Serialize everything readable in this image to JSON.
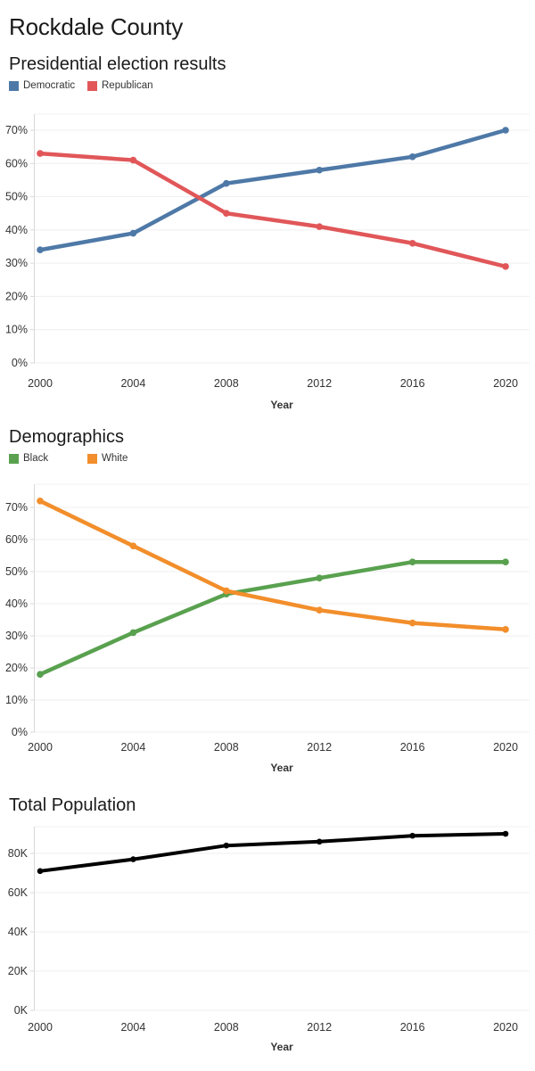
{
  "header": {
    "title": "Rockdale County"
  },
  "chart_data": [
    {
      "type": "line",
      "title": "Presidential election results",
      "xlabel": "Year",
      "x": [
        "2000",
        "2004",
        "2008",
        "2012",
        "2016",
        "2020"
      ],
      "series": [
        {
          "name": "Democratic",
          "color": "#4e79a7",
          "values": [
            34,
            39,
            54,
            58,
            62,
            70
          ]
        },
        {
          "name": "Republican",
          "color": "#e15759",
          "values": [
            63,
            61,
            45,
            41,
            36,
            29
          ]
        }
      ],
      "ylim": [
        0,
        70
      ],
      "ytick_step": 10,
      "ytick_suffix": "%",
      "grid": true,
      "legend_position": "top"
    },
    {
      "type": "line",
      "title": "Demographics",
      "xlabel": "Year",
      "x": [
        "2000",
        "2004",
        "2008",
        "2012",
        "2016",
        "2020"
      ],
      "series": [
        {
          "name": "Black",
          "color": "#59a14f",
          "values": [
            18,
            31,
            43,
            48,
            53,
            53
          ]
        },
        {
          "name": "White",
          "color": "#f28e2b",
          "values": [
            72,
            58,
            44,
            38,
            34,
            32
          ]
        }
      ],
      "ylim": [
        0,
        70
      ],
      "ytick_step": 10,
      "ytick_suffix": "%",
      "grid": true,
      "legend_position": "top"
    },
    {
      "type": "line",
      "title": "Total Population",
      "xlabel": "Year",
      "x": [
        "2000",
        "2004",
        "2008",
        "2012",
        "2016",
        "2020"
      ],
      "value_unit": "K",
      "series": [
        {
          "name": "Total Population",
          "color": "#000000",
          "values": [
            71,
            77,
            84,
            86,
            89,
            90
          ]
        }
      ],
      "ylim": [
        0,
        80
      ],
      "ytick_step": 20,
      "ytick_suffix": "K",
      "grid": true,
      "legend_position": "none"
    }
  ]
}
